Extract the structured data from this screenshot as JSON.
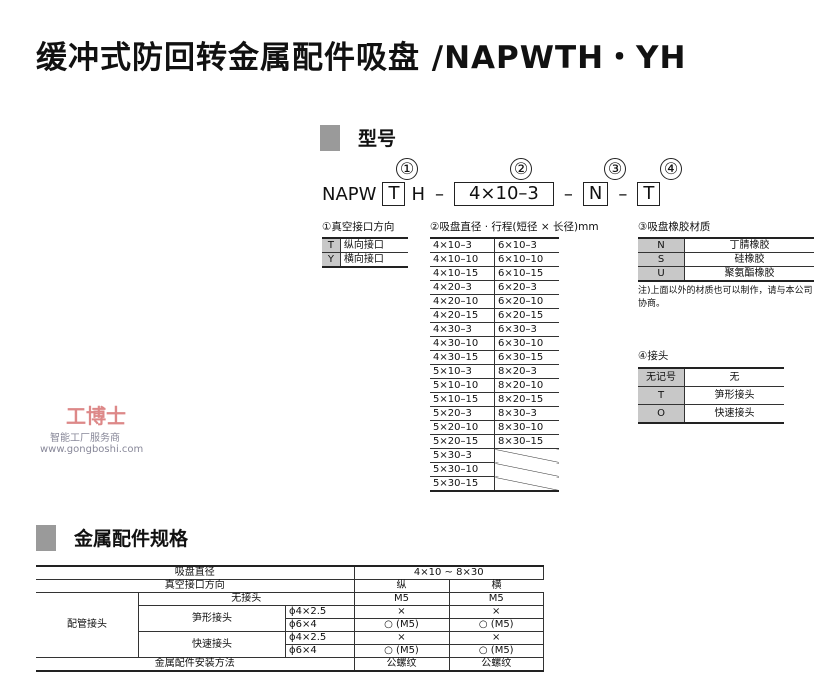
{
  "title": "缓冲式防回转金属配件吸盘 /NAPWTH・YH",
  "model_section": {
    "heading": "型号",
    "markers": [
      "①",
      "②",
      "③",
      "④"
    ],
    "code": {
      "prefix": "NAPW",
      "c1": "T",
      "mid": "H",
      "dash": "–",
      "c2": "4×10–3",
      "c3": "N",
      "c4": "T"
    }
  },
  "port": {
    "caption": "①真空接口方向",
    "rows": [
      [
        "T",
        "纵向接口"
      ],
      [
        "Y",
        "横向接口"
      ]
    ]
  },
  "size": {
    "caption": "②吸盘直径 · 行程(短径 × 长径)mm",
    "rows": [
      [
        "4×10–3",
        "6×10–3"
      ],
      [
        "4×10–10",
        "6×10–10"
      ],
      [
        "4×10–15",
        "6×10–15"
      ],
      [
        "4×20–3",
        "6×20–3"
      ],
      [
        "4×20–10",
        "6×20–10"
      ],
      [
        "4×20–15",
        "6×20–15"
      ],
      [
        "4×30–3",
        "6×30–3"
      ],
      [
        "4×30–10",
        "6×30–10"
      ],
      [
        "4×30–15",
        "6×30–15"
      ],
      [
        "5×10–3",
        "8×20–3"
      ],
      [
        "5×10–10",
        "8×20–10"
      ],
      [
        "5×10–15",
        "8×20–15"
      ],
      [
        "5×20–3",
        "8×30–3"
      ],
      [
        "5×20–10",
        "8×30–10"
      ],
      [
        "5×20–15",
        "8×30–15"
      ],
      [
        "5×30–3",
        ""
      ],
      [
        "5×30–10",
        ""
      ],
      [
        "5×30–15",
        ""
      ]
    ]
  },
  "rubber": {
    "caption": "③吸盘橡胶材质",
    "rows": [
      [
        "N",
        "丁腈橡胶"
      ],
      [
        "S",
        "硅橡胶"
      ],
      [
        "U",
        "聚氨酯橡胶"
      ]
    ],
    "note": "注)上面以外的材质也可以制作，请与本公司协商。"
  },
  "fitting": {
    "caption": "④接头",
    "rows": [
      [
        "无记号",
        "无"
      ],
      [
        "T",
        "笋形接头"
      ],
      [
        "O",
        "快速接头"
      ]
    ]
  },
  "spec_section": {
    "heading": "金属配件规格",
    "pad_dia_label": "吸盘直径",
    "pad_dia_value": "4×10 ~ 8×30",
    "port_dir_label": "真空接口方向",
    "vertical": "纵",
    "horizontal": "横",
    "piping_label": "配管接头",
    "none_label": "无接头",
    "none_v": "M5",
    "none_h": "M5",
    "barb_label": "笋形接头",
    "quick_label": "快速接头",
    "sizes": [
      "ϕ4×2.5",
      "ϕ6×4"
    ],
    "x": "×",
    "ok": "○ (M5)",
    "mount_label": "金属配件安装方法",
    "mount_v": "公螺纹",
    "mount_h": "公螺纹"
  },
  "watermark": {
    "brand": "工博士",
    "sub": "智能工厂服务商",
    "url": "www.gongboshi.com"
  }
}
